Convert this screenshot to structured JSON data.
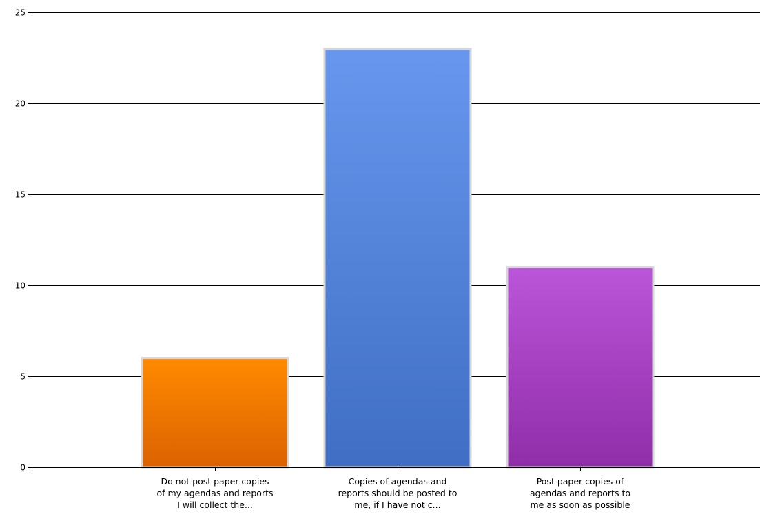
{
  "chart_data": {
    "type": "bar",
    "title": "",
    "xlabel": "",
    "ylabel": "",
    "ylim": [
      0,
      25
    ],
    "yticks": [
      "0",
      "5",
      "10",
      "15",
      "20",
      "25"
    ],
    "grid": true,
    "categories": [
      [
        "Do not post paper copies",
        "of my agendas and reports",
        "I will collect the..."
      ],
      [
        "Copies of agendas and",
        "reports should be posted to",
        "me, if I have not c..."
      ],
      [
        "Post paper copies of",
        "agendas and reports to",
        "me as soon as possible"
      ]
    ],
    "values": [
      6,
      23,
      11
    ],
    "colors": [
      [
        "#ff8a00",
        "#dc6200"
      ],
      [
        "#6797ee",
        "#3f6ec4"
      ],
      [
        "#bb55d9",
        "#902ea9"
      ]
    ]
  }
}
